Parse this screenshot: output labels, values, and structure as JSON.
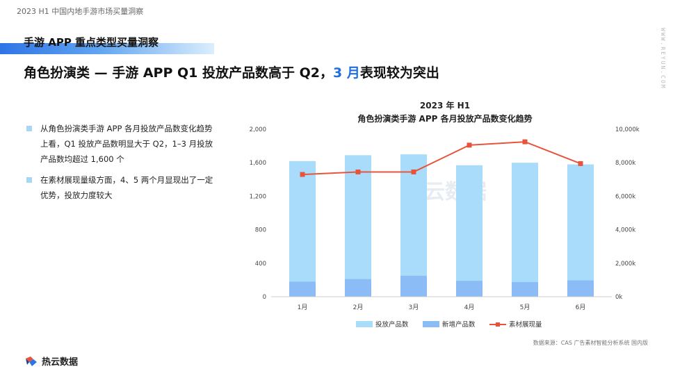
{
  "header": {
    "report_label": "2023 H1 中国内地手游市场买量洞察",
    "section_title": "手游 APP 重点类型买量洞察",
    "headline_pre": "角色扮演类 — 手游 APP Q1 投放产品数高于 Q2，",
    "headline_highlight": "3 月",
    "headline_post": "表现较为突出",
    "vertical_url": "WWW.REYUN.COM"
  },
  "bullets": [
    "从角色扮演类手游 APP 各月投放产品数变化趋势上看，Q1 投放产品数明显大于 Q2，1–3 月投放产品数均超过 1,600 个",
    "在素材展现量级方面，4、5 两个月显现出了一定优势，投放力度较大"
  ],
  "chart_data": {
    "type": "bar",
    "title": "2023 年 H1",
    "subtitle": "角色扮演类手游 APP 各月投放产品数变化趋势",
    "categories": [
      "1月",
      "2月",
      "3月",
      "4月",
      "5月",
      "6月"
    ],
    "ylim": [
      0,
      2000
    ],
    "yticks": [
      "0",
      "400",
      "800",
      "1,200",
      "1,600",
      "2,000"
    ],
    "y2lim": [
      0,
      10000
    ],
    "y2ticks": [
      "0k",
      "2,000k",
      "4,000k",
      "6,000k",
      "8,000k",
      "10,000k"
    ],
    "series": [
      {
        "name": "投放产品数",
        "type": "bar",
        "color": "#a9dcfa",
        "values": [
          1620,
          1690,
          1700,
          1570,
          1600,
          1580
        ]
      },
      {
        "name": "新增产品数",
        "type": "bar",
        "color": "#8cbcf5",
        "values": [
          180,
          210,
          250,
          190,
          175,
          195
        ]
      },
      {
        "name": "素材展现量",
        "type": "line",
        "axis": "right",
        "color": "#e8533c",
        "values": [
          7300,
          7450,
          7450,
          9050,
          9250,
          7950
        ]
      }
    ],
    "watermark": "热云数据"
  },
  "source": "数据来源：CAS 广告素材智能分析系统 国内版",
  "brand": {
    "name": "热云数据",
    "colors": {
      "accent": "#1e6fe0",
      "bar_total": "#a9dcfa",
      "bar_new": "#8cbcf5",
      "line": "#e8533c"
    }
  }
}
